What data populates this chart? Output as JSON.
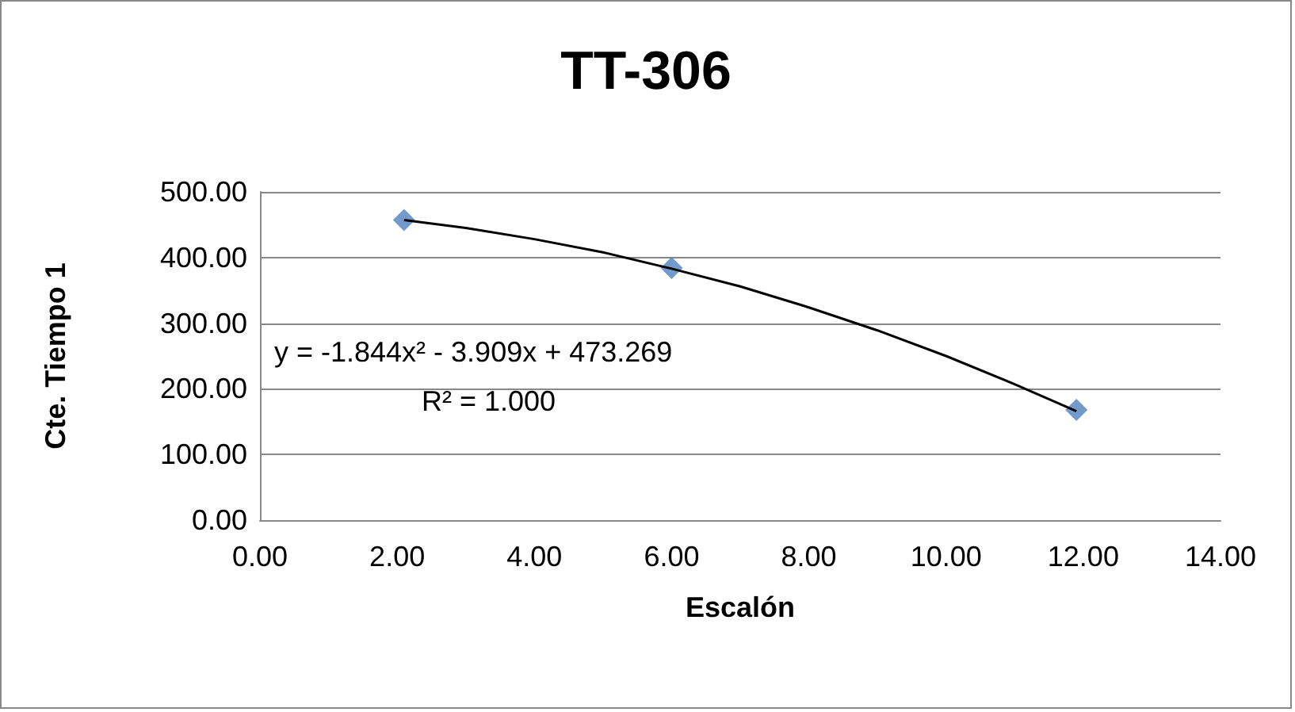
{
  "chart_data": {
    "type": "scatter",
    "title": "TT-306",
    "xlabel": "Escalón",
    "ylabel": "Cte. Tiempo 1",
    "annotations": [
      "y = -1.844x² - 3.909x + 473.269",
      "R² = 1.000"
    ],
    "series": [
      {
        "color": "#4f81bd",
        "marker": "diamond",
        "x": [
          2.1,
          6.0,
          11.9
        ],
        "values": [
          457,
          384,
          168
        ]
      },
      {
        "type": "line",
        "color": "#000000",
        "marker": "none",
        "x": [
          2.1,
          3,
          4,
          5,
          6,
          7,
          8,
          9,
          10,
          11,
          11.9
        ],
        "values": [
          457,
          445,
          428,
          408,
          383,
          356,
          324,
          289,
          250,
          207,
          166
        ]
      }
    ],
    "xlim": [
      0,
      14
    ],
    "xticks": [
      {
        "value": 0,
        "label": "0.00"
      },
      {
        "value": 2,
        "label": "2.00"
      },
      {
        "value": 4,
        "label": "4.00"
      },
      {
        "value": 6,
        "label": "6.00"
      },
      {
        "value": 8,
        "label": "8.00"
      },
      {
        "value": 10,
        "label": "10.00"
      },
      {
        "value": 12,
        "label": "12.00"
      },
      {
        "value": 14,
        "label": "14.00"
      }
    ],
    "ylim": [
      0,
      500
    ],
    "yticks": [
      {
        "value": 0,
        "label": "0.00"
      },
      {
        "value": 100,
        "label": "100.00"
      },
      {
        "value": 200,
        "label": "200.00"
      },
      {
        "value": 300,
        "label": "300.00"
      },
      {
        "value": 400,
        "label": "400.00"
      },
      {
        "value": 500,
        "label": "500.00"
      }
    ],
    "grid": "y"
  }
}
